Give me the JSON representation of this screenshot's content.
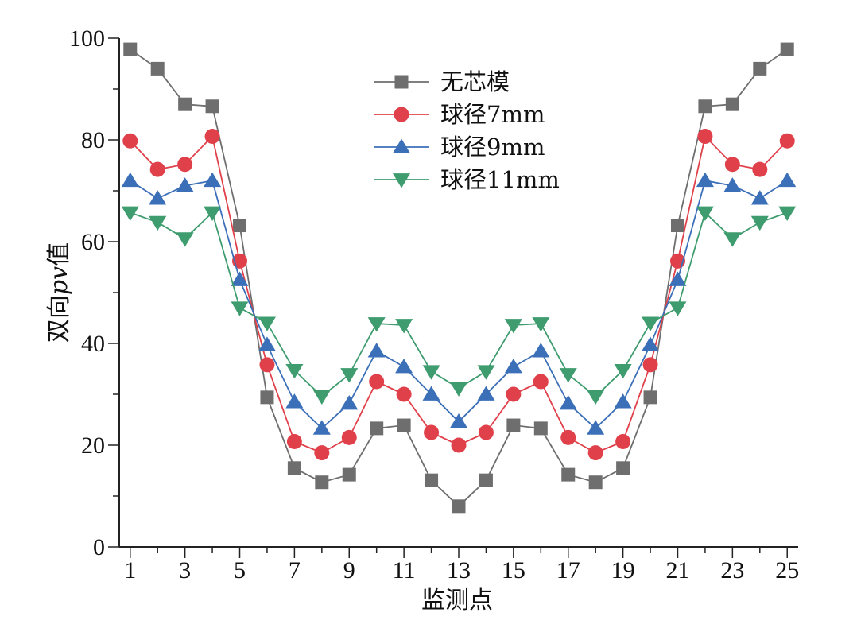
{
  "chart_data": {
    "type": "line",
    "xlabel": "监测点",
    "ylabel": "双向pv值",
    "ylabel_parts": [
      "双向",
      "pv",
      "值"
    ],
    "xlim": [
      0.6,
      25.4
    ],
    "ylim": [
      0,
      100
    ],
    "x_ticks": [
      1,
      3,
      5,
      7,
      9,
      11,
      13,
      15,
      17,
      19,
      21,
      23,
      25
    ],
    "y_ticks": [
      0,
      20,
      40,
      60,
      80,
      100
    ],
    "grid": false,
    "legend_position": "top-center",
    "x": [
      1,
      2,
      3,
      4,
      5,
      6,
      7,
      8,
      9,
      10,
      11,
      12,
      13,
      14,
      15,
      16,
      17,
      18,
      19,
      20,
      21,
      22,
      23,
      24,
      25
    ],
    "series": [
      {
        "name": "无芯模",
        "color": "#6e6e6e",
        "marker": "square",
        "values": [
          97.8,
          94.0,
          87.0,
          86.6,
          63.2,
          29.4,
          15.5,
          12.7,
          14.2,
          23.3,
          23.9,
          13.1,
          8.0,
          13.1,
          23.9,
          23.3,
          14.2,
          12.7,
          15.5,
          29.4,
          63.2,
          86.6,
          87.0,
          94.0,
          97.8
        ]
      },
      {
        "name": "球径7mm",
        "color": "#e0404a",
        "marker": "circle",
        "values": [
          79.8,
          74.2,
          75.2,
          80.7,
          56.2,
          35.8,
          20.7,
          18.5,
          21.5,
          32.5,
          30.0,
          22.5,
          20.0,
          22.5,
          30.0,
          32.5,
          21.5,
          18.5,
          20.7,
          35.8,
          56.2,
          80.7,
          75.2,
          74.2,
          79.8
        ]
      },
      {
        "name": "球径9mm",
        "color": "#3b6fb8",
        "marker": "triangle-up",
        "values": [
          72.0,
          68.5,
          71.0,
          72.0,
          52.5,
          39.7,
          28.5,
          23.3,
          28.2,
          38.5,
          35.4,
          30.0,
          24.6,
          30.0,
          35.4,
          38.5,
          28.2,
          23.3,
          28.5,
          39.7,
          52.5,
          72.0,
          71.0,
          68.5,
          72.0
        ]
      },
      {
        "name": "球径11mm",
        "color": "#3e9c6e",
        "marker": "triangle-down",
        "values": [
          65.7,
          63.8,
          60.6,
          65.7,
          47.0,
          44.0,
          34.7,
          29.6,
          33.9,
          43.9,
          43.6,
          34.5,
          31.2,
          34.5,
          43.6,
          43.9,
          33.9,
          29.6,
          34.7,
          44.0,
          47.0,
          65.7,
          60.6,
          63.8,
          65.7
        ]
      }
    ]
  }
}
